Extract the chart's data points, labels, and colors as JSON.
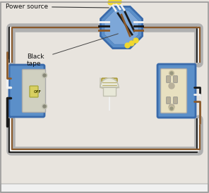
{
  "bg_color": "#e8e4de",
  "box_blue": "#5b8fc9",
  "box_blue_dark": "#3a6aaa",
  "box_blue_light": "#a0c0e8",
  "wire_gray_conduit": "#b0b0b0",
  "wire_black": "#1a1a1a",
  "wire_white": "#f0f0f0",
  "wire_brown": "#8B5a2B",
  "wire_yellow_tip": "#f0d830",
  "title_text": "Power source",
  "label_black_tape": "Black\ntape",
  "outlet_cream": "#e8e0c0",
  "switch_gray": "#d0d0c0",
  "bulb_glass": "#e8e8d8",
  "bulb_socket": "#d4c870"
}
